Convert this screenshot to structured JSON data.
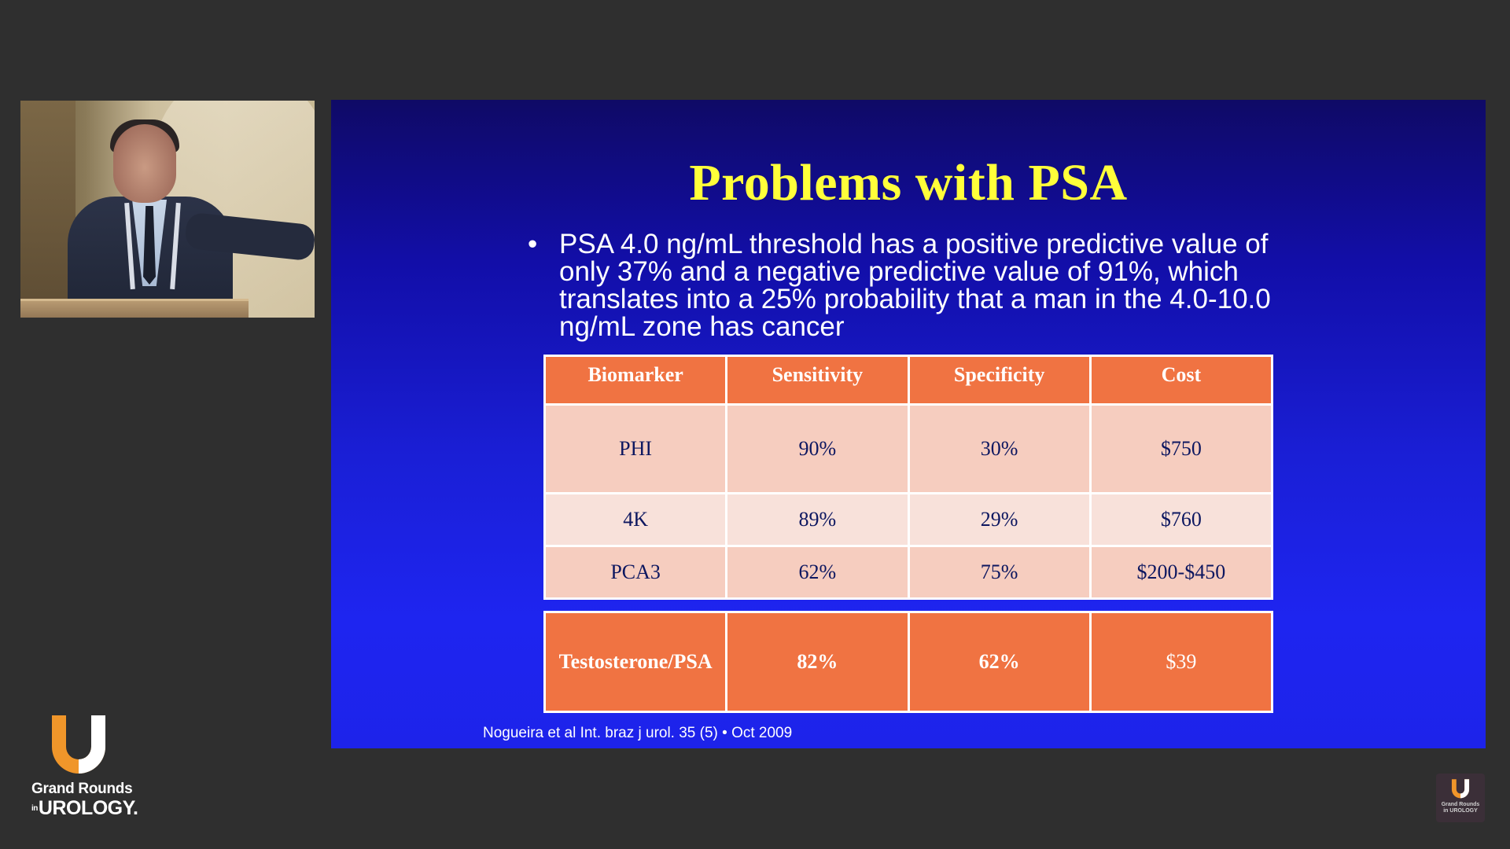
{
  "slide": {
    "title": "Problems with PSA",
    "bullet": "PSA 4.0 ng/mL threshold has a positive predictive value of only 37% and a negative predictive value of 91%, which translates into a 25% probability that a man in the 4.0-10.0 ng/mL zone has cancer",
    "bullet_marker": "•",
    "table": {
      "headers": [
        "Biomarker",
        "Sensitivity",
        "Specificity",
        "Cost"
      ],
      "rows": [
        [
          "PHI",
          "90%",
          "30%",
          "$750"
        ],
        [
          "4K",
          "89%",
          "29%",
          "$760"
        ],
        [
          "PCA3",
          "62%",
          "75%",
          "$200-$450"
        ]
      ],
      "highlight_row": [
        "Testosterone/PSA",
        "82%",
        "62%",
        "$39"
      ]
    },
    "citation": "Nogueira et al Int. braz j urol. 35 (5) • Oct 2009"
  },
  "branding": {
    "line1": "Grand Rounds",
    "line2_prefix": "in",
    "line2": "UROLOGY",
    "line2_suffix": ".",
    "mini_line1": "Grand Rounds",
    "mini_line2": "in UROLOGY",
    "logo_icon": "u-logo-icon",
    "accent_color": "#f0962a"
  },
  "colors": {
    "background": "#2f2f2f",
    "slide_title": "#ffff3a",
    "table_header": "#f07342",
    "table_row_dark": "#f6cdbf",
    "table_row_light": "#f8e1da",
    "table_text": "#0d1760"
  }
}
